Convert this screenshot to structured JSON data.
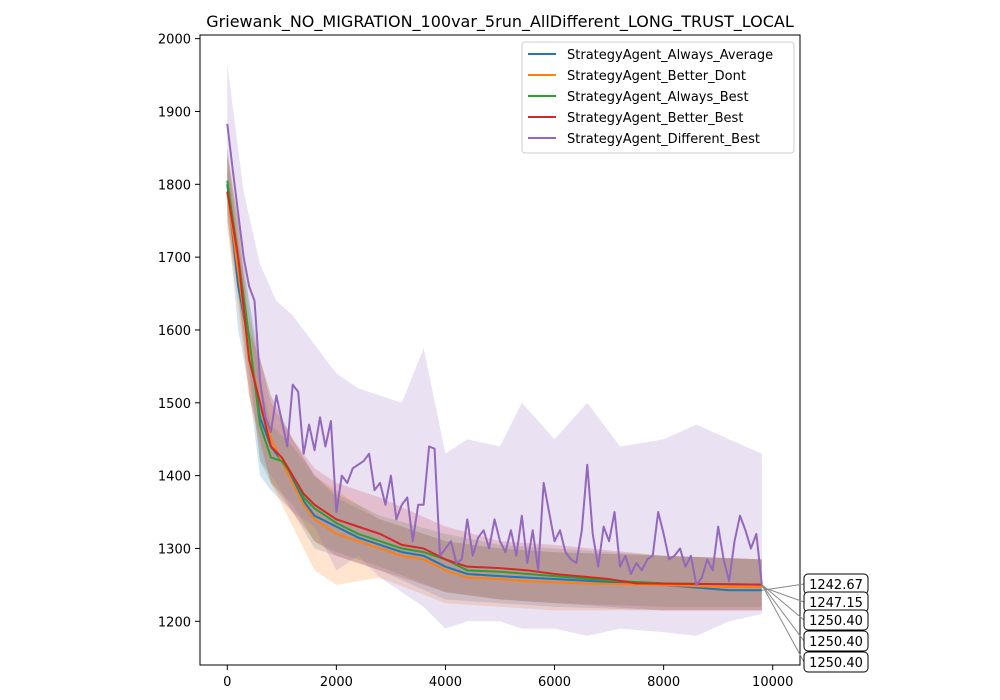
{
  "chart_data": {
    "type": "line",
    "title": "Griewank_NO_MIGRATION_100var_5run_AllDifferent_LONG_TRUST_LOCAL",
    "xlabel": "",
    "ylabel": "",
    "xlim": [
      -500,
      10500
    ],
    "ylim": [
      1140,
      2005
    ],
    "xticks": [
      0,
      2000,
      4000,
      6000,
      8000,
      10000
    ],
    "yticks": [
      1200,
      1300,
      1400,
      1500,
      1600,
      1700,
      1800,
      1900,
      2000
    ],
    "grid": false,
    "legend_position": "top-right",
    "colors": {
      "StrategyAgent_Always_Average": "#1f77b4",
      "StrategyAgent_Better_Dont": "#ff7f0e",
      "StrategyAgent_Always_Best": "#2ca02c",
      "StrategyAgent_Better_Best": "#d62728",
      "StrategyAgent_Different_Best": "#9467bd"
    },
    "series": [
      {
        "name": "StrategyAgent_Always_Average",
        "points": [
          [
            0,
            1800
          ],
          [
            200,
            1660
          ],
          [
            400,
            1580
          ],
          [
            600,
            1480
          ],
          [
            800,
            1440
          ],
          [
            1000,
            1420
          ],
          [
            1200,
            1395
          ],
          [
            1400,
            1365
          ],
          [
            1600,
            1345
          ],
          [
            2000,
            1330
          ],
          [
            2400,
            1315
          ],
          [
            2800,
            1305
          ],
          [
            3200,
            1295
          ],
          [
            3600,
            1290
          ],
          [
            4000,
            1275
          ],
          [
            4400,
            1265
          ],
          [
            5000,
            1262
          ],
          [
            6000,
            1258
          ],
          [
            7000,
            1254
          ],
          [
            8000,
            1250
          ],
          [
            9200,
            1242.67
          ],
          [
            9800,
            1242.67
          ]
        ],
        "band": [
          [
            0,
            1760,
            1840
          ],
          [
            200,
            1600,
            1720
          ],
          [
            400,
            1520,
            1640
          ],
          [
            600,
            1400,
            1560
          ],
          [
            800,
            1380,
            1510
          ],
          [
            1200,
            1350,
            1450
          ],
          [
            1600,
            1300,
            1400
          ],
          [
            2000,
            1290,
            1370
          ],
          [
            2800,
            1270,
            1340
          ],
          [
            4000,
            1230,
            1310
          ],
          [
            5000,
            1225,
            1300
          ],
          [
            6000,
            1220,
            1295
          ],
          [
            8000,
            1215,
            1290
          ],
          [
            9800,
            1215,
            1285
          ]
        ]
      },
      {
        "name": "StrategyAgent_Better_Dont",
        "points": [
          [
            0,
            1790
          ],
          [
            200,
            1680
          ],
          [
            400,
            1570
          ],
          [
            600,
            1500
          ],
          [
            800,
            1450
          ],
          [
            1000,
            1420
          ],
          [
            1200,
            1390
          ],
          [
            1400,
            1360
          ],
          [
            1600,
            1340
          ],
          [
            2000,
            1320
          ],
          [
            2400,
            1310
          ],
          [
            2800,
            1300
          ],
          [
            3200,
            1290
          ],
          [
            3600,
            1285
          ],
          [
            4000,
            1270
          ],
          [
            4400,
            1260
          ],
          [
            5000,
            1258
          ],
          [
            5500,
            1255
          ],
          [
            6500,
            1252
          ],
          [
            8000,
            1250
          ],
          [
            9000,
            1247.15
          ],
          [
            9800,
            1247.15
          ]
        ],
        "band": [
          [
            0,
            1740,
            1850
          ],
          [
            200,
            1630,
            1730
          ],
          [
            400,
            1510,
            1620
          ],
          [
            600,
            1440,
            1560
          ],
          [
            800,
            1390,
            1510
          ],
          [
            1200,
            1330,
            1450
          ],
          [
            1600,
            1270,
            1400
          ],
          [
            2000,
            1250,
            1380
          ],
          [
            2800,
            1260,
            1340
          ],
          [
            4000,
            1225,
            1310
          ],
          [
            5000,
            1220,
            1300
          ],
          [
            6000,
            1215,
            1295
          ],
          [
            8000,
            1215,
            1290
          ],
          [
            9800,
            1215,
            1285
          ]
        ]
      },
      {
        "name": "StrategyAgent_Always_Best",
        "points": [
          [
            0,
            1805
          ],
          [
            200,
            1700
          ],
          [
            400,
            1590
          ],
          [
            600,
            1470
          ],
          [
            800,
            1425
          ],
          [
            1000,
            1420
          ],
          [
            1200,
            1400
          ],
          [
            1400,
            1370
          ],
          [
            1600,
            1355
          ],
          [
            2000,
            1335
          ],
          [
            2400,
            1320
          ],
          [
            2800,
            1310
          ],
          [
            3200,
            1300
          ],
          [
            3600,
            1295
          ],
          [
            4000,
            1285
          ],
          [
            4400,
            1270
          ],
          [
            5000,
            1268
          ],
          [
            6000,
            1262
          ],
          [
            7000,
            1256
          ],
          [
            8000,
            1252
          ],
          [
            9800,
            1250.4
          ]
        ],
        "band": [
          [
            0,
            1770,
            1850
          ],
          [
            200,
            1650,
            1750
          ],
          [
            400,
            1540,
            1640
          ],
          [
            600,
            1420,
            1530
          ],
          [
            800,
            1390,
            1470
          ],
          [
            1200,
            1360,
            1440
          ],
          [
            1600,
            1310,
            1400
          ],
          [
            2000,
            1295,
            1375
          ],
          [
            2800,
            1275,
            1345
          ],
          [
            4000,
            1240,
            1320
          ],
          [
            5000,
            1230,
            1305
          ],
          [
            6000,
            1225,
            1300
          ],
          [
            8000,
            1220,
            1290
          ],
          [
            9800,
            1220,
            1285
          ]
        ]
      },
      {
        "name": "StrategyAgent_Better_Best",
        "points": [
          [
            0,
            1790
          ],
          [
            200,
            1700
          ],
          [
            400,
            1560
          ],
          [
            600,
            1500
          ],
          [
            800,
            1440
          ],
          [
            1000,
            1425
          ],
          [
            1200,
            1400
          ],
          [
            1400,
            1375
          ],
          [
            1600,
            1360
          ],
          [
            2000,
            1340
          ],
          [
            2400,
            1330
          ],
          [
            2800,
            1320
          ],
          [
            3200,
            1305
          ],
          [
            3600,
            1300
          ],
          [
            4000,
            1285
          ],
          [
            4400,
            1275
          ],
          [
            5000,
            1273
          ],
          [
            5500,
            1270
          ],
          [
            6000,
            1265
          ],
          [
            7000,
            1258
          ],
          [
            7500,
            1252
          ],
          [
            9800,
            1250.4
          ]
        ],
        "band": [
          [
            0,
            1750,
            1840
          ],
          [
            200,
            1650,
            1750
          ],
          [
            400,
            1510,
            1600
          ],
          [
            600,
            1450,
            1560
          ],
          [
            800,
            1390,
            1500
          ],
          [
            1200,
            1350,
            1450
          ],
          [
            1600,
            1310,
            1410
          ],
          [
            2000,
            1290,
            1390
          ],
          [
            2800,
            1270,
            1370
          ],
          [
            4000,
            1240,
            1330
          ],
          [
            5000,
            1230,
            1310
          ],
          [
            6000,
            1225,
            1305
          ],
          [
            8000,
            1215,
            1290
          ],
          [
            9800,
            1215,
            1285
          ]
        ]
      },
      {
        "name": "StrategyAgent_Different_Best",
        "points": [
          [
            0,
            1883
          ],
          [
            100,
            1820
          ],
          [
            200,
            1760
          ],
          [
            300,
            1700
          ],
          [
            400,
            1660
          ],
          [
            500,
            1640
          ],
          [
            600,
            1530
          ],
          [
            700,
            1480
          ],
          [
            800,
            1460
          ],
          [
            900,
            1510
          ],
          [
            1000,
            1475
          ],
          [
            1100,
            1440
          ],
          [
            1200,
            1525
          ],
          [
            1300,
            1515
          ],
          [
            1400,
            1430
          ],
          [
            1500,
            1470
          ],
          [
            1600,
            1435
          ],
          [
            1700,
            1480
          ],
          [
            1800,
            1440
          ],
          [
            1900,
            1475
          ],
          [
            2000,
            1350
          ],
          [
            2100,
            1400
          ],
          [
            2200,
            1390
          ],
          [
            2300,
            1410
          ],
          [
            2400,
            1415
          ],
          [
            2500,
            1420
          ],
          [
            2600,
            1430
          ],
          [
            2700,
            1380
          ],
          [
            2800,
            1390
          ],
          [
            2900,
            1360
          ],
          [
            3000,
            1400
          ],
          [
            3100,
            1340
          ],
          [
            3200,
            1360
          ],
          [
            3300,
            1370
          ],
          [
            3400,
            1310
          ],
          [
            3500,
            1360
          ],
          [
            3600,
            1360
          ],
          [
            3700,
            1440
          ],
          [
            3800,
            1437
          ],
          [
            3900,
            1290
          ],
          [
            4000,
            1300
          ],
          [
            4100,
            1310
          ],
          [
            4200,
            1280
          ],
          [
            4300,
            1285
          ],
          [
            4400,
            1340
          ],
          [
            4500,
            1290
          ],
          [
            4600,
            1315
          ],
          [
            4700,
            1325
          ],
          [
            4800,
            1300
          ],
          [
            4900,
            1340
          ],
          [
            5000,
            1310
          ],
          [
            5100,
            1295
          ],
          [
            5200,
            1325
          ],
          [
            5300,
            1290
          ],
          [
            5400,
            1345
          ],
          [
            5500,
            1280
          ],
          [
            5600,
            1325
          ],
          [
            5700,
            1270
          ],
          [
            5800,
            1390
          ],
          [
            5900,
            1350
          ],
          [
            6000,
            1310
          ],
          [
            6100,
            1325
          ],
          [
            6200,
            1295
          ],
          [
            6300,
            1285
          ],
          [
            6400,
            1280
          ],
          [
            6500,
            1325
          ],
          [
            6600,
            1415
          ],
          [
            6700,
            1320
          ],
          [
            6800,
            1275
          ],
          [
            6900,
            1330
          ],
          [
            7000,
            1310
          ],
          [
            7100,
            1350
          ],
          [
            7200,
            1275
          ],
          [
            7300,
            1290
          ],
          [
            7400,
            1265
          ],
          [
            7500,
            1280
          ],
          [
            7600,
            1270
          ],
          [
            7700,
            1285
          ],
          [
            7800,
            1290
          ],
          [
            7900,
            1350
          ],
          [
            8000,
            1320
          ],
          [
            8100,
            1285
          ],
          [
            8200,
            1290
          ],
          [
            8300,
            1300
          ],
          [
            8400,
            1275
          ],
          [
            8500,
            1290
          ],
          [
            8600,
            1250
          ],
          [
            8700,
            1260
          ],
          [
            8800,
            1285
          ],
          [
            8900,
            1270
          ],
          [
            9000,
            1330
          ],
          [
            9100,
            1285
          ],
          [
            9200,
            1255
          ],
          [
            9300,
            1310
          ],
          [
            9400,
            1345
          ],
          [
            9500,
            1325
          ],
          [
            9600,
            1300
          ],
          [
            9700,
            1320
          ],
          [
            9800,
            1250.4
          ]
        ],
        "band": [
          [
            0,
            1800,
            1965
          ],
          [
            300,
            1620,
            1790
          ],
          [
            600,
            1420,
            1690
          ],
          [
            900,
            1390,
            1640
          ],
          [
            1200,
            1350,
            1620
          ],
          [
            1600,
            1330,
            1580
          ],
          [
            2000,
            1270,
            1540
          ],
          [
            2400,
            1290,
            1520
          ],
          [
            2800,
            1260,
            1510
          ],
          [
            3200,
            1240,
            1500
          ],
          [
            3600,
            1220,
            1575
          ],
          [
            4000,
            1190,
            1430
          ],
          [
            4400,
            1200,
            1450
          ],
          [
            5000,
            1200,
            1440
          ],
          [
            5400,
            1190,
            1500
          ],
          [
            6000,
            1190,
            1450
          ],
          [
            6600,
            1180,
            1500
          ],
          [
            7200,
            1190,
            1440
          ],
          [
            8000,
            1185,
            1450
          ],
          [
            8600,
            1180,
            1470
          ],
          [
            9200,
            1200,
            1450
          ],
          [
            9800,
            1210,
            1430
          ]
        ]
      }
    ],
    "annotations": [
      "1242.67",
      "1247.15",
      "1250.40",
      "1250.40",
      "1250.40"
    ]
  }
}
